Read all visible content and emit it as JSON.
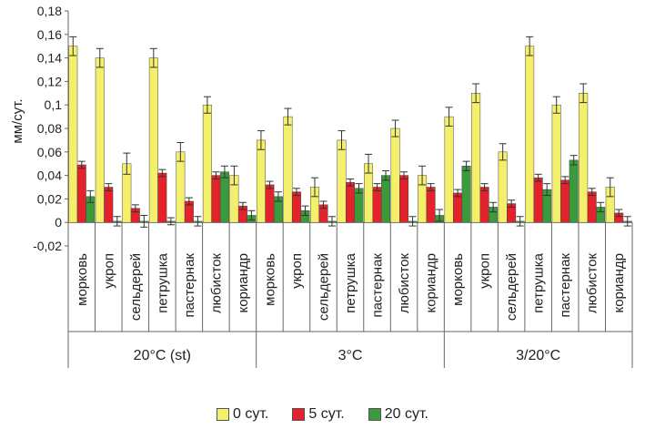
{
  "chart_data": {
    "type": "bar",
    "ylabel": "мм/сут.",
    "ylim": [
      -0.02,
      0.18
    ],
    "yticks": [
      "-0,02",
      "0",
      "0,02",
      "0,04",
      "0,06",
      "0,08",
      "0,1",
      "0,12",
      "0,14",
      "0,16",
      "0,18"
    ],
    "categories": [
      "морковь",
      "укроп",
      "сельдерей",
      "петрушка",
      "пастернак",
      "любисток",
      "кориандр"
    ],
    "groups": [
      "20°C (st)",
      "3°C",
      "3/20°C"
    ],
    "series": [
      {
        "name": "0 сут.",
        "color": "#f5f06b",
        "values": [
          [
            0.15,
            0.14,
            0.05,
            0.14,
            0.06,
            0.1,
            0.04
          ],
          [
            0.07,
            0.09,
            0.03,
            0.07,
            0.05,
            0.08,
            0.04
          ],
          [
            0.09,
            0.11,
            0.06,
            0.15,
            0.1,
            0.11,
            0.03
          ]
        ],
        "errors": [
          [
            0.008,
            0.008,
            0.009,
            0.008,
            0.008,
            0.007,
            0.008
          ],
          [
            0.008,
            0.007,
            0.008,
            0.008,
            0.008,
            0.007,
            0.008
          ],
          [
            0.008,
            0.008,
            0.007,
            0.008,
            0.007,
            0.008,
            0.008
          ]
        ]
      },
      {
        "name": "5 сут.",
        "color": "#e3222b",
        "values": [
          [
            0.049,
            0.03,
            0.012,
            0.042,
            0.018,
            0.04,
            0.014
          ],
          [
            0.032,
            0.026,
            0.015,
            0.034,
            0.03,
            0.04,
            0.03
          ],
          [
            0.025,
            0.03,
            0.016,
            0.038,
            0.036,
            0.026,
            0.008
          ]
        ],
        "errors": [
          [
            0.003,
            0.003,
            0.003,
            0.003,
            0.003,
            0.003,
            0.003
          ],
          [
            0.003,
            0.003,
            0.003,
            0.003,
            0.003,
            0.003,
            0.003
          ],
          [
            0.003,
            0.003,
            0.003,
            0.003,
            0.003,
            0.003,
            0.003
          ]
        ]
      },
      {
        "name": "20 сут.",
        "color": "#3b9a3b",
        "values": [
          [
            0.022,
            0.001,
            0.001,
            0.001,
            0.001,
            0.043,
            0.006
          ],
          [
            0.022,
            0.01,
            0.001,
            0.029,
            0.04,
            0.001,
            0.006
          ],
          [
            0.048,
            0.013,
            0.001,
            0.028,
            0.053,
            0.013,
            0.001
          ]
        ],
        "errors": [
          [
            0.005,
            0.004,
            0.005,
            0.003,
            0.004,
            0.005,
            0.004
          ],
          [
            0.004,
            0.004,
            0.004,
            0.004,
            0.004,
            0.004,
            0.005
          ],
          [
            0.004,
            0.004,
            0.004,
            0.005,
            0.004,
            0.004,
            0.004
          ]
        ]
      }
    ]
  }
}
